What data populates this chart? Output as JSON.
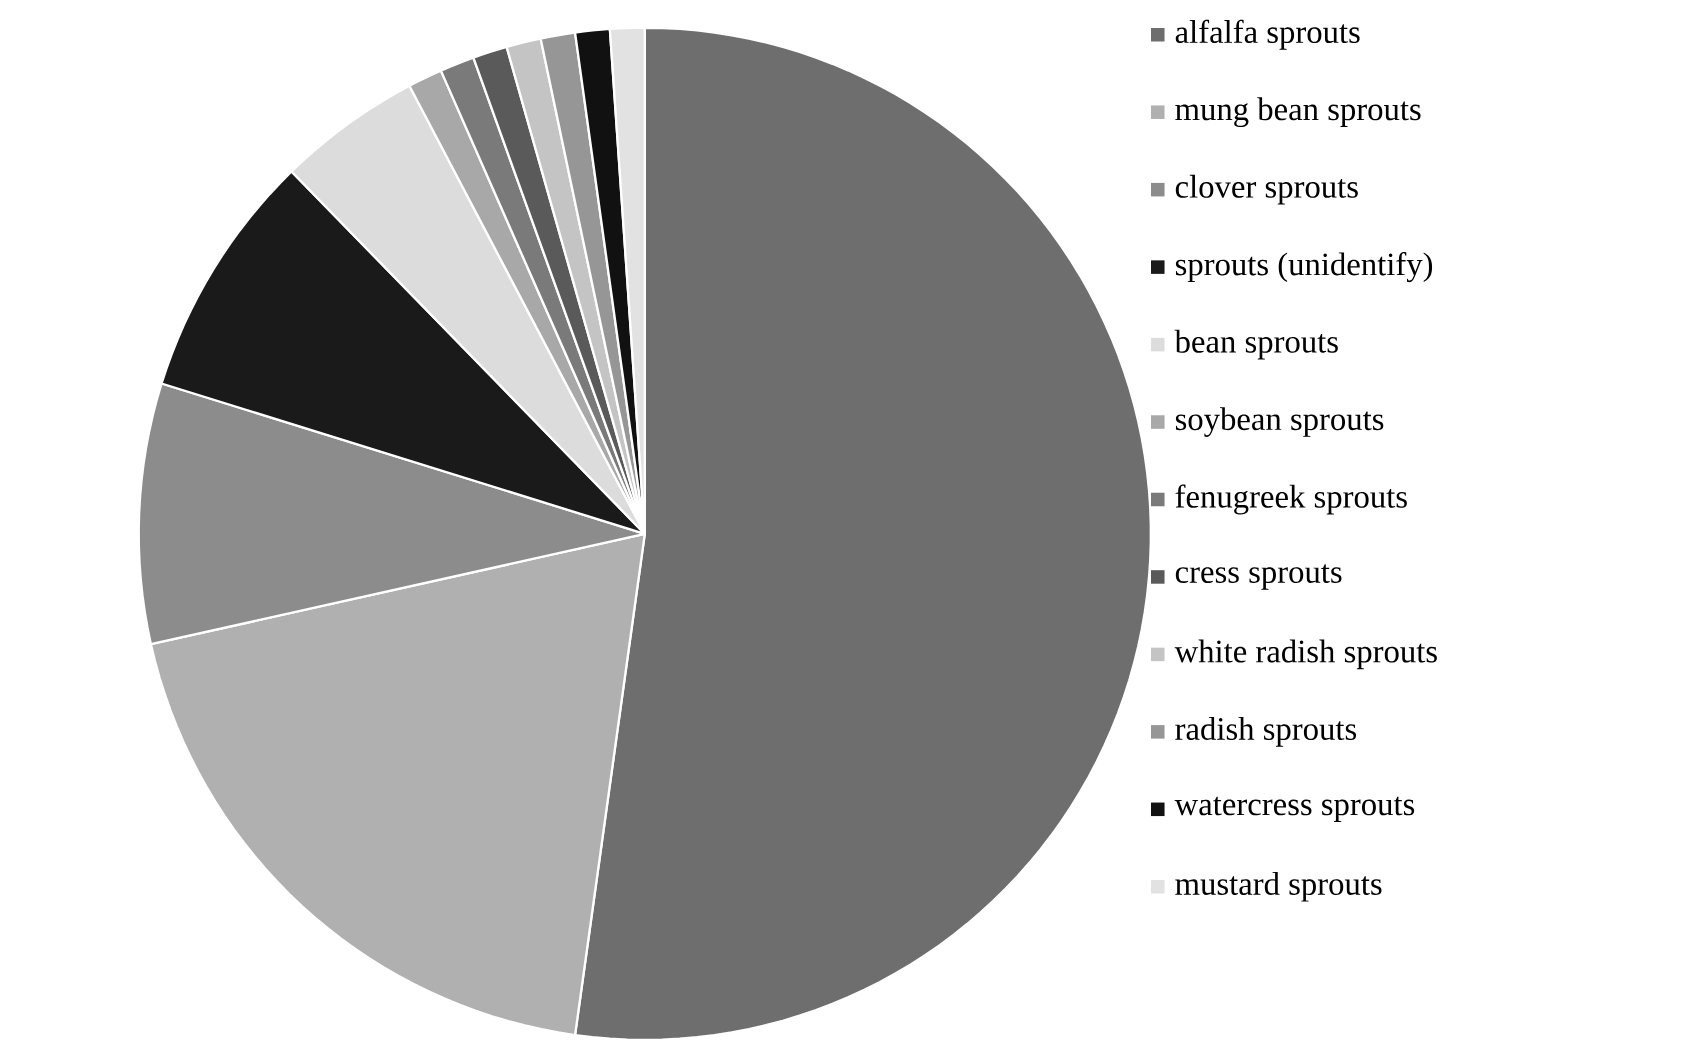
{
  "chart_data": {
    "type": "pie",
    "categories": [
      "alfalfa sprouts",
      "mung bean sprouts",
      "clover sprouts",
      "sprouts (unidentify)",
      "bean sprouts",
      "soybean sprouts",
      "fenugreek sprouts",
      "cress sprouts",
      "white radish sprouts",
      "radish sprouts",
      "watercress sprouts",
      "mustard sprouts"
    ],
    "values": [
      52.2,
      19.3,
      8.3,
      7.9,
      4.6,
      1.1,
      1.1,
      1.1,
      1.1,
      1.1,
      1.1,
      1.1
    ],
    "colors": [
      "#6e6e6e",
      "#b0b0b0",
      "#8c8c8c",
      "#1a1a1a",
      "#dcdcdc",
      "#a8a8a8",
      "#7a7a7a",
      "#5a5a5a",
      "#c4c4c4",
      "#969696",
      "#111111",
      "#e2e2e2"
    ],
    "legend": "right"
  }
}
